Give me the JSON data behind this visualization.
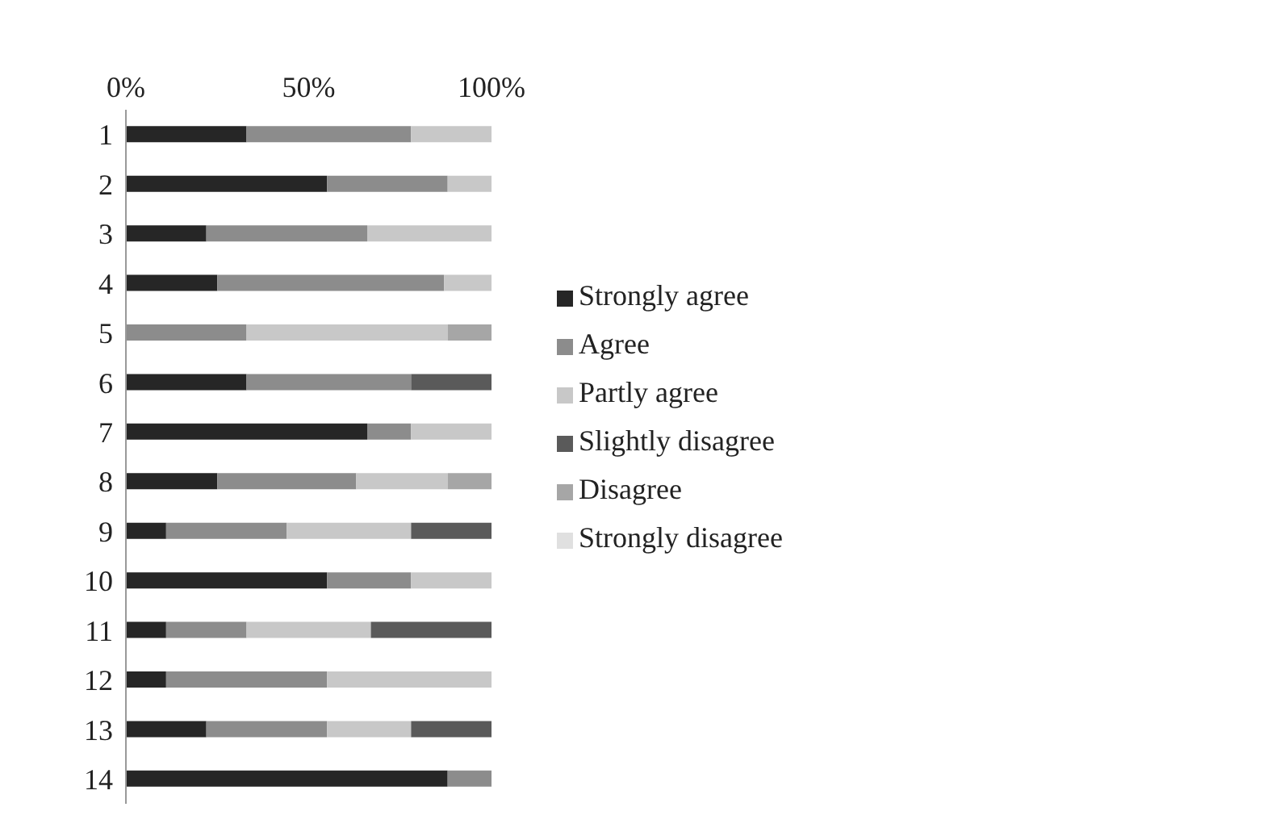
{
  "chart_data": {
    "type": "bar",
    "orientation": "horizontal",
    "stacked": true,
    "categories": [
      "1",
      "2",
      "3",
      "4",
      "5",
      "6",
      "7",
      "8",
      "9",
      "10",
      "11",
      "12",
      "13",
      "14"
    ],
    "series": [
      {
        "name": "Strongly agree",
        "color": "#262626",
        "values": [
          33,
          55,
          22,
          25,
          0,
          33,
          66,
          25,
          11,
          55,
          11,
          11,
          22,
          88
        ]
      },
      {
        "name": "Agree",
        "color": "#8c8c8c",
        "values": [
          45,
          33,
          44,
          62,
          33,
          45,
          12,
          38,
          33,
          23,
          22,
          44,
          33,
          12
        ]
      },
      {
        "name": "Partly agree",
        "color": "#c8c8c8",
        "values": [
          22,
          12,
          34,
          13,
          55,
          0,
          22,
          25,
          34,
          22,
          34,
          45,
          23,
          0
        ]
      },
      {
        "name": "Slightly disagree",
        "color": "#5a5a5a",
        "values": [
          0,
          0,
          0,
          0,
          0,
          22,
          0,
          0,
          22,
          0,
          33,
          0,
          22,
          0
        ]
      },
      {
        "name": "Disagree",
        "color": "#a6a6a6",
        "values": [
          0,
          0,
          0,
          0,
          12,
          0,
          0,
          12,
          0,
          0,
          0,
          0,
          0,
          0
        ]
      },
      {
        "name": "Strongly disagree",
        "color": "#e0e0e0",
        "values": [
          0,
          0,
          0,
          0,
          0,
          0,
          0,
          0,
          0,
          0,
          0,
          0,
          0,
          0
        ]
      }
    ],
    "xlim": [
      0,
      100
    ],
    "xticks": [
      {
        "value": 0,
        "label": "0%"
      },
      {
        "value": 50,
        "label": "50%"
      },
      {
        "value": 100,
        "label": "100%"
      }
    ],
    "grid": false,
    "legend": "right"
  }
}
